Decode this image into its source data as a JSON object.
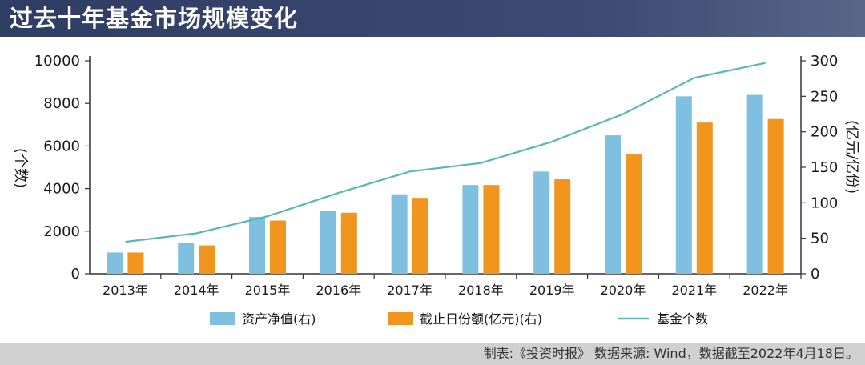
{
  "title": "过去十年基金市场规模变化",
  "footer": "制表:《投资时报》 数据来源: Wind，数据截至2022年4月18日。",
  "colors": {
    "bar1": "#7fbfdf",
    "bar2": "#f2951f",
    "line": "#58b7b5",
    "title_bg": "#36436b"
  },
  "chart_data": {
    "type": "bar",
    "categories": [
      "2013年",
      "2014年",
      "2015年",
      "2016年",
      "2017年",
      "2018年",
      "2019年",
      "2020年",
      "2021年",
      "2022年"
    ],
    "series": [
      {
        "name": "资产净值(右)",
        "type": "bar",
        "axis": "right",
        "values": [
          30,
          44,
          80,
          88,
          112,
          125,
          144,
          195,
          250,
          252
        ]
      },
      {
        "name": "截止日份额(亿元)(右)",
        "type": "bar",
        "axis": "right",
        "values": [
          30,
          40,
          75,
          86,
          107,
          125,
          133,
          168,
          213,
          218
        ]
      },
      {
        "name": "基金个数",
        "type": "line",
        "axis": "left",
        "values": [
          1500,
          1900,
          2700,
          3800,
          4800,
          5200,
          6200,
          7500,
          9200,
          9900
        ]
      }
    ],
    "y_left": {
      "label": "(个数)",
      "lim": [
        0,
        10000
      ],
      "ticks": [
        "0",
        "2000",
        "4000",
        "6000",
        "8000",
        "10000"
      ]
    },
    "y_right": {
      "label": "(亿元/亿份)",
      "lim": [
        0,
        300
      ],
      "ticks": [
        "0",
        "50",
        "100",
        "150",
        "200",
        "250",
        "300"
      ]
    },
    "legend_position": "bottom"
  }
}
